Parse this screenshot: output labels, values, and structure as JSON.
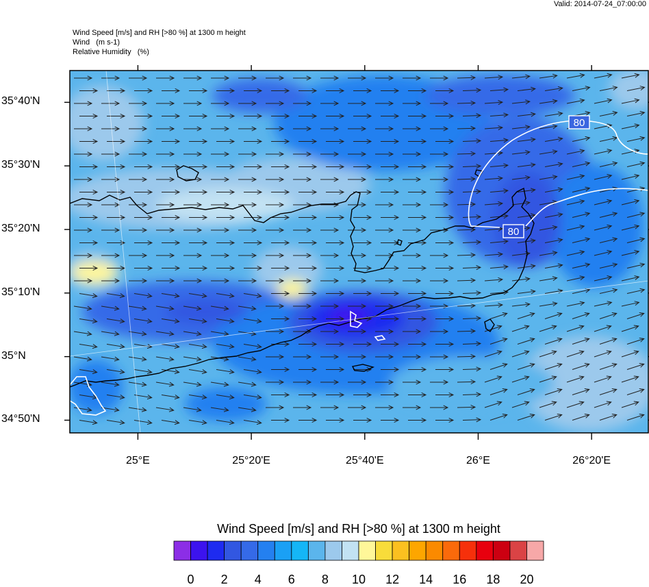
{
  "valid_label": "Valid: 2014-07-24_07:00:00",
  "header": {
    "line1": "Wind Speed [m/s] and RH [>80 %] at 1300 m height",
    "line2": "Wind   (m s-1)",
    "line3": "Relative Humidity   (%)"
  },
  "map": {
    "region": "Crete",
    "lon_range": [
      24.8,
      26.5
    ],
    "lat_range": [
      34.8,
      35.75
    ],
    "lat_ticks": [
      {
        "value": 35.6667,
        "label": "35°40'N"
      },
      {
        "value": 35.5,
        "label": "35°30'N"
      },
      {
        "value": 35.3333,
        "label": "35°20'N"
      },
      {
        "value": 35.1667,
        "label": "35°10'N"
      },
      {
        "value": 35.0,
        "label": "35°N"
      },
      {
        "value": 34.8333,
        "label": "34°50'N"
      }
    ],
    "lon_ticks": [
      {
        "value": 25.0,
        "label": "25°E"
      },
      {
        "value": 25.3333,
        "label": "25°20'E"
      },
      {
        "value": 25.6667,
        "label": "25°40'E"
      },
      {
        "value": 26.0,
        "label": "26°E"
      },
      {
        "value": 26.3333,
        "label": "26°20'E"
      }
    ],
    "rh_contour_labels": [
      "80",
      "80"
    ],
    "wind_direction": "west to east, slightly south-westerly in the east"
  },
  "colorbar": {
    "title": "Wind Speed [m/s] and RH [>80 %] at 1300 m height",
    "colors": [
      "#8c2ee6",
      "#3c13ee",
      "#1e2bf0",
      "#3257e1",
      "#356ae8",
      "#2480f0",
      "#1aa0f5",
      "#15b6f6",
      "#5bb5ec",
      "#9cc9ec",
      "#c2e2f3",
      "#fff799",
      "#f8dc3a",
      "#fbc020",
      "#fda600",
      "#fb8a00",
      "#fa6a0b",
      "#f6300b",
      "#e8000e",
      "#cc0011",
      "#da4345",
      "#f7a8a8"
    ],
    "tick_labels": [
      "0",
      "2",
      "4",
      "6",
      "8",
      "10",
      "12",
      "14",
      "16",
      "18",
      "20"
    ]
  }
}
